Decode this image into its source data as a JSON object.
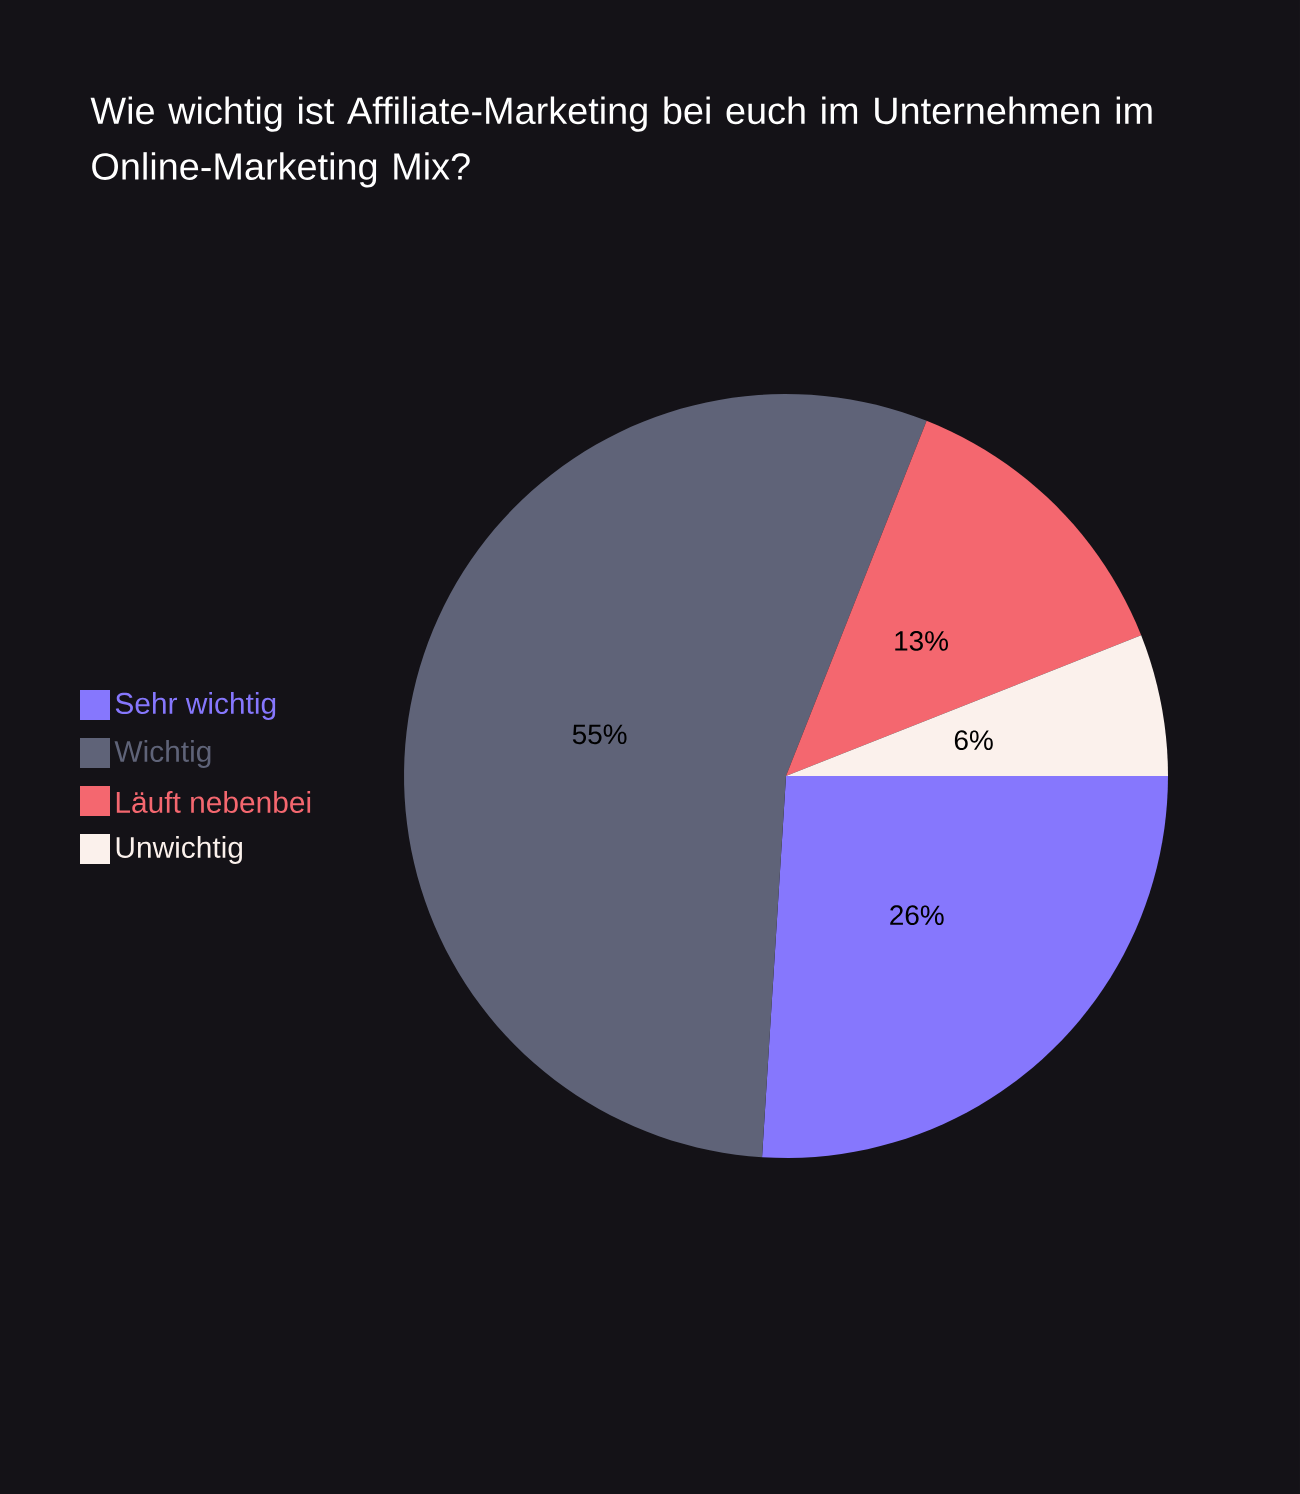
{
  "chart_data": {
    "type": "pie",
    "title": "Wie wichtig ist Affiliate-Marketing bei euch im Unternehmen im Online-Marketing Mix?",
    "categories": [
      "Sehr wichtig",
      "Wichtig",
      "Läuft nebenbei",
      "Unwichtig"
    ],
    "values": [
      26,
      55,
      13,
      6
    ],
    "colors": [
      "#8677fd",
      "#5f6378",
      "#f4676f",
      "#fbf1ec"
    ],
    "value_labels": [
      "26%",
      "55%",
      "13%",
      "6%"
    ],
    "legend": "left"
  }
}
